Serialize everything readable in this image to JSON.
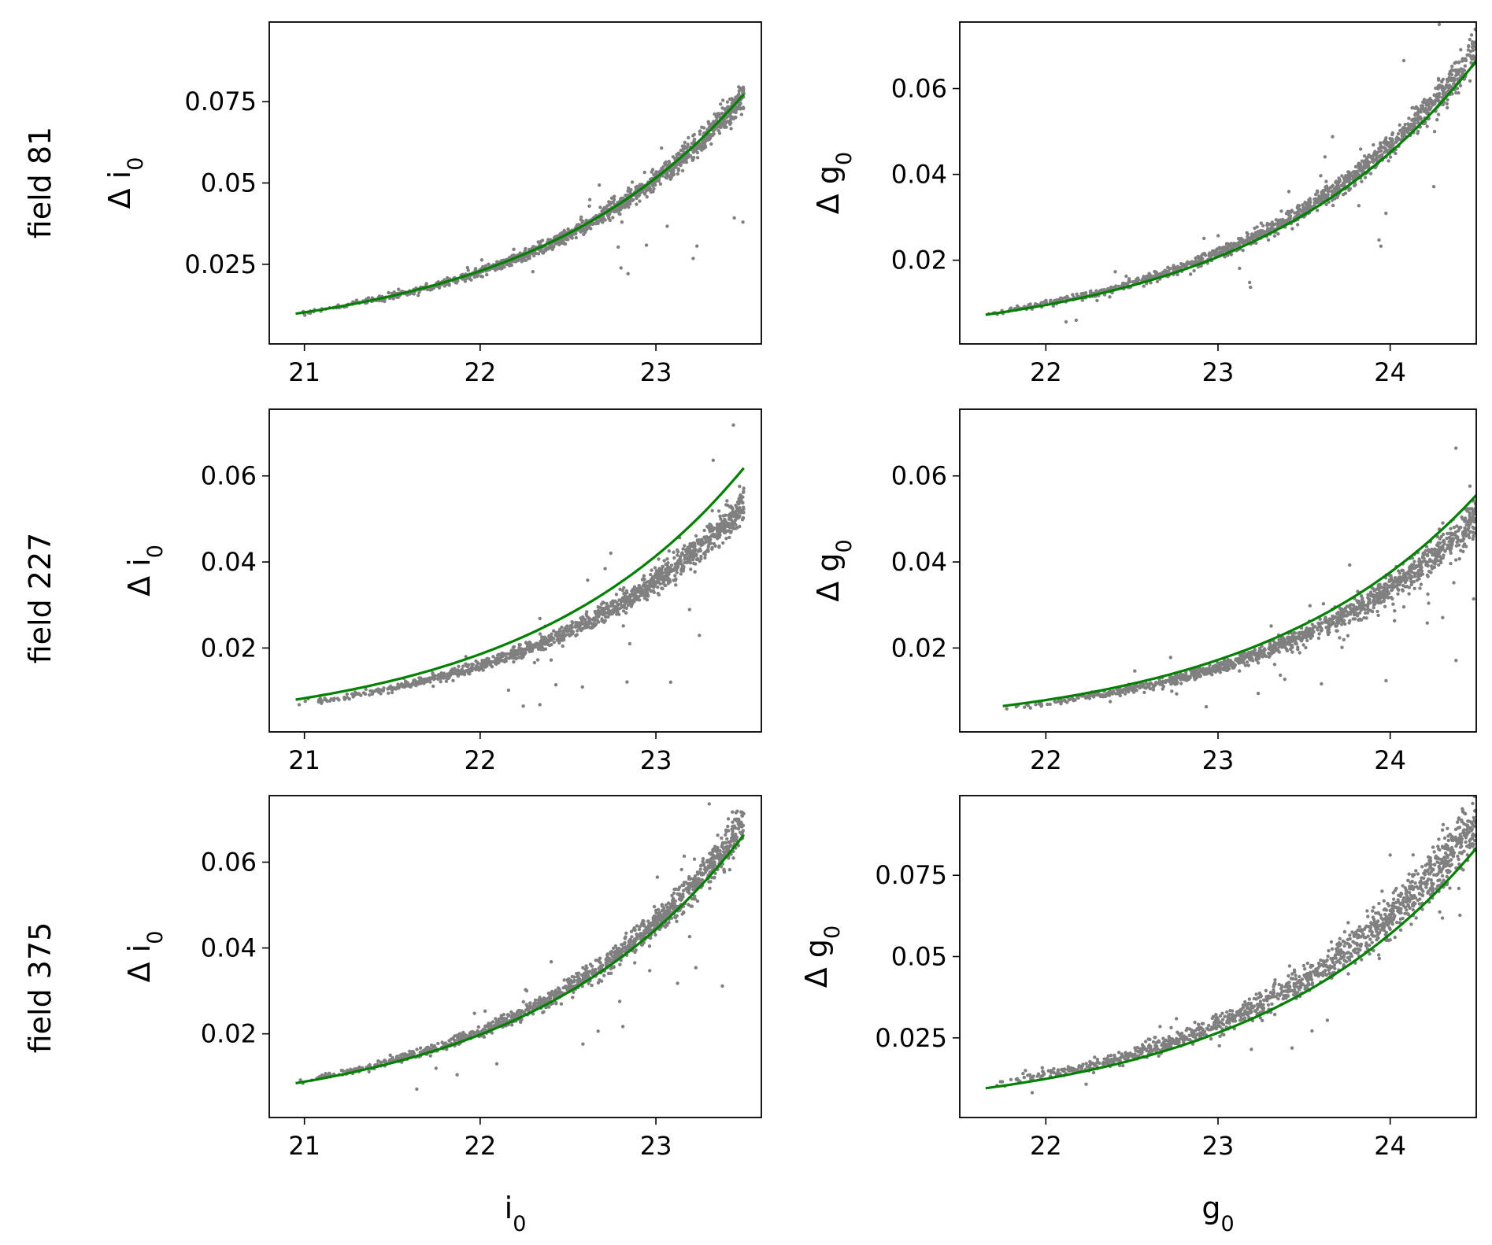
{
  "figure": {
    "rows": [
      {
        "label": "field 81"
      },
      {
        "label": "field 227"
      },
      {
        "label": "field 375"
      }
    ],
    "bottom_xlabels": {
      "left": {
        "base": "i",
        "sub": "0"
      },
      "right": {
        "base": "g",
        "sub": "0"
      }
    }
  },
  "colors": {
    "scatter": "#808080",
    "fit": "#008000",
    "axes": "#000000"
  },
  "chart_data": [
    {
      "type": "scatter",
      "row": 0,
      "col": 0,
      "title": "",
      "row_label": "field 81",
      "xlabel": "",
      "ylabel": {
        "prefix": "Δ ",
        "base": "i",
        "sub": "0"
      },
      "xlim": [
        20.8,
        23.6
      ],
      "ylim": [
        0.0005,
        0.0995
      ],
      "xticks": [
        21,
        22,
        23
      ],
      "xtick_labels": [
        "21",
        "22",
        "23"
      ],
      "yticks": [
        0.025,
        0.05,
        0.075
      ],
      "ytick_labels": [
        "0.025",
        "0.05",
        "0.075"
      ],
      "series": [
        {
          "name": "data",
          "x_range": [
            20.95,
            23.5
          ],
          "fit": {
            "a": 0.0098,
            "x0": 20.95,
            "k": 0.81
          },
          "spread": 0.03,
          "bias": -0.01,
          "outlier_rate": 0.02,
          "seed": 11
        },
        {
          "name": "fit",
          "x": [
            20.95,
            21.5,
            22.0,
            22.5,
            23.0,
            23.5
          ],
          "y": [
            0.0098,
            0.0153,
            0.0229,
            0.0343,
            0.0515,
            0.0774
          ]
        }
      ]
    },
    {
      "type": "scatter",
      "row": 0,
      "col": 1,
      "title": "",
      "row_label": "field 81",
      "xlabel": "",
      "ylabel": {
        "prefix": "Δ ",
        "base": "g",
        "sub": "0"
      },
      "xlim": [
        21.5,
        24.5
      ],
      "ylim": [
        0.0005,
        0.0755
      ],
      "xticks": [
        22,
        23,
        24
      ],
      "xtick_labels": [
        "22",
        "23",
        "24"
      ],
      "yticks": [
        0.02,
        0.04,
        0.06
      ],
      "ytick_labels": [
        "0.02",
        "0.04",
        "0.06"
      ],
      "series": [
        {
          "name": "data",
          "x_range": [
            21.65,
            24.5
          ],
          "fit": {
            "a": 0.0073,
            "x0": 21.65,
            "k": 0.775
          },
          "spread": 0.035,
          "bias": 0.035,
          "outlier_rate": 0.03,
          "seed": 12
        },
        {
          "name": "fit",
          "x": [
            21.65,
            22.0,
            22.5,
            23.0,
            23.5,
            24.0,
            24.5
          ],
          "y": [
            0.0073,
            0.0096,
            0.0141,
            0.0208,
            0.0305,
            0.0449,
            0.0668
          ]
        }
      ]
    },
    {
      "type": "scatter",
      "row": 1,
      "col": 0,
      "title": "",
      "row_label": "field 227",
      "xlabel": "",
      "ylabel": {
        "prefix": "Δ ",
        "base": "i",
        "sub": "0"
      },
      "xlim": [
        20.8,
        23.6
      ],
      "ylim": [
        0.0005,
        0.0755
      ],
      "xticks": [
        21,
        22,
        23
      ],
      "xtick_labels": [
        "21",
        "22",
        "23"
      ],
      "yticks": [
        0.02,
        0.04,
        0.06
      ],
      "ytick_labels": [
        "0.02",
        "0.04",
        "0.06"
      ],
      "series": [
        {
          "name": "data",
          "x_range": [
            20.95,
            23.5
          ],
          "fit": {
            "a": 0.008,
            "x0": 20.95,
            "k": 0.802
          },
          "spread": 0.035,
          "bias": -0.14,
          "outlier_rate": 0.03,
          "seed": 21
        },
        {
          "name": "fit",
          "x": [
            20.95,
            21.5,
            22.0,
            22.5,
            23.0,
            23.5
          ],
          "y": [
            0.008,
            0.0124,
            0.0186,
            0.0279,
            0.0414,
            0.0617
          ]
        }
      ]
    },
    {
      "type": "scatter",
      "row": 1,
      "col": 1,
      "title": "",
      "row_label": "field 227",
      "xlabel": "",
      "ylabel": {
        "prefix": "Δ ",
        "base": "g",
        "sub": "0"
      },
      "xlim": [
        21.5,
        24.5
      ],
      "ylim": [
        0.0005,
        0.0755
      ],
      "xticks": [
        22,
        23,
        24
      ],
      "xtick_labels": [
        "22",
        "23",
        "24"
      ],
      "yticks": [
        0.02,
        0.04,
        0.06
      ],
      "ytick_labels": [
        "0.02",
        "0.04",
        "0.06"
      ],
      "series": [
        {
          "name": "data",
          "x_range": [
            21.75,
            24.5
          ],
          "fit": {
            "a": 0.0065,
            "x0": 21.75,
            "k": 0.78
          },
          "spread": 0.04,
          "bias": -0.1,
          "outlier_rate": 0.03,
          "seed": 22
        },
        {
          "name": "fit",
          "x": [
            21.75,
            22.0,
            22.5,
            23.0,
            23.5,
            24.0,
            24.5
          ],
          "y": [
            0.0065,
            0.0079,
            0.0117,
            0.0173,
            0.0256,
            0.0376,
            0.0555
          ]
        }
      ]
    },
    {
      "type": "scatter",
      "row": 2,
      "col": 0,
      "title": "",
      "row_label": "field 375",
      "xlabel": {
        "base": "i",
        "sub": "0"
      },
      "ylabel": {
        "prefix": "Δ ",
        "base": "i",
        "sub": "0"
      },
      "xlim": [
        20.8,
        23.6
      ],
      "ylim": [
        0.0005,
        0.0755
      ],
      "xticks": [
        21,
        22,
        23
      ],
      "xtick_labels": [
        "21",
        "22",
        "23"
      ],
      "yticks": [
        0.02,
        0.04,
        0.06
      ],
      "ytick_labels": [
        "0.02",
        "0.04",
        "0.06"
      ],
      "series": [
        {
          "name": "data",
          "x_range": [
            20.95,
            23.5
          ],
          "fit": {
            "a": 0.0085,
            "x0": 20.95,
            "k": 0.806
          },
          "spread": 0.035,
          "bias": 0.035,
          "outlier_rate": 0.03,
          "seed": 31
        },
        {
          "name": "fit",
          "x": [
            20.95,
            21.5,
            22.0,
            22.5,
            23.0,
            23.5
          ],
          "y": [
            0.0085,
            0.0132,
            0.0198,
            0.0297,
            0.0444,
            0.0665
          ]
        }
      ]
    },
    {
      "type": "scatter",
      "row": 2,
      "col": 1,
      "title": "",
      "row_label": "field 375",
      "xlabel": {
        "base": "g",
        "sub": "0"
      },
      "ylabel": {
        "prefix": "Δ ",
        "base": "g",
        "sub": "0"
      },
      "xlim": [
        21.5,
        24.5
      ],
      "ylim": [
        0.0005,
        0.0995
      ],
      "xticks": [
        22,
        23,
        24
      ],
      "xtick_labels": [
        "22",
        "23",
        "24"
      ],
      "yticks": [
        0.025,
        0.05,
        0.075
      ],
      "ytick_labels": [
        "0.025",
        "0.05",
        "0.075"
      ],
      "series": [
        {
          "name": "data",
          "x_range": [
            21.65,
            24.5
          ],
          "fit": {
            "a": 0.0095,
            "x0": 21.65,
            "k": 0.762
          },
          "spread": 0.06,
          "bias": 0.1,
          "outlier_rate": 0.02,
          "seed": 32
        },
        {
          "name": "fit",
          "x": [
            21.65,
            22.0,
            22.5,
            23.0,
            23.5,
            24.0,
            24.5
          ],
          "y": [
            0.0095,
            0.0124,
            0.0181,
            0.0264,
            0.0386,
            0.0565,
            0.0824
          ]
        }
      ]
    }
  ]
}
